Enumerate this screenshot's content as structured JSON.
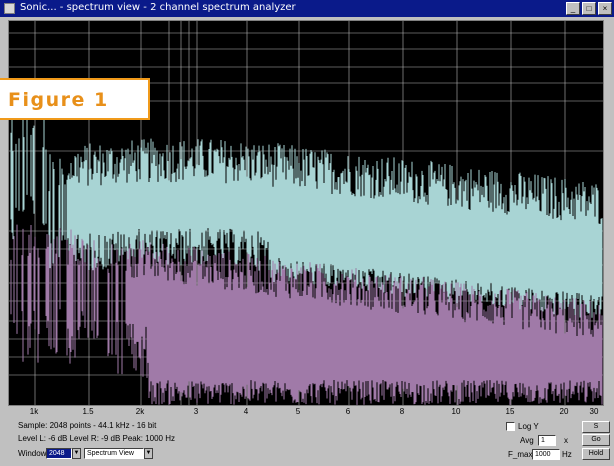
{
  "window": {
    "title": "Sonic... - spectrum view - 2 channel spectrum analyzer"
  },
  "figure_label": "Figure 1",
  "colors": {
    "plot_background": "#000000",
    "channel_1": "#a8d4d4",
    "channel_2": "#a07aa8",
    "grid": "#b8b8b8",
    "figure_text": "#e8901a",
    "figure_border": "#f09a1a",
    "titlebar": "#0a1a8a"
  },
  "x_axis": {
    "ticks": [
      "1k",
      "1.5",
      "2k",
      "3",
      "4",
      "5",
      "6",
      "8",
      "10",
      "15",
      "20",
      "30"
    ]
  },
  "status": {
    "line1": "Sample: 2048 points - 44.1 kHz - 16 bit",
    "line2": "Level L: -6 dB   Level R: -9 dB   Peak: 1000 Hz",
    "line3_label": "Window",
    "window_value": "2048",
    "mode_value": "Spectrum View"
  },
  "controls": {
    "log_checkbox_label": "Log Y",
    "avg_label": "Avg",
    "avg_value": "1",
    "avg_unit": "x",
    "fmax_label": "F_max",
    "fmax_value": "1000",
    "fmax_unit": "Hz",
    "button_1": "S",
    "button_2": "Go",
    "button_3": "Hold"
  }
}
